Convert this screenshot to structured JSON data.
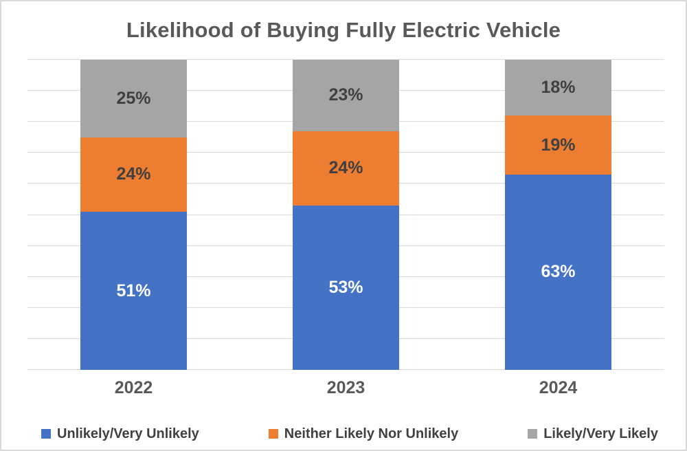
{
  "window": {
    "background_color": "#FFFFFF",
    "border_color": "#D9D9D9"
  },
  "chart_data": {
    "type": "bar",
    "stacked": true,
    "orientation": "vertical",
    "title": "Likelihood of Buying Fully Electric Vehicle",
    "xlabel": "",
    "ylabel": "",
    "categories": [
      "2022",
      "2023",
      "2024"
    ],
    "series": [
      {
        "name": "Unlikely/Very Unlikely",
        "color": "#4472C4",
        "label_color": "#FFFFFF",
        "values": [
          51,
          53,
          63
        ],
        "data_labels": [
          "51%",
          "53%",
          "63%"
        ]
      },
      {
        "name": "Neither Likely Nor Unlikely",
        "color": "#ED7D31",
        "label_color": "#404040",
        "values": [
          24,
          24,
          19
        ],
        "data_labels": [
          "24%",
          "24%",
          "19%"
        ]
      },
      {
        "name": "Likely/Very Likely",
        "color": "#A5A5A5",
        "label_color": "#404040",
        "values": [
          25,
          23,
          18
        ],
        "data_labels": [
          "25%",
          "23%",
          "18%"
        ]
      }
    ],
    "ylim": [
      0,
      100
    ],
    "gridline_step_percent": 10,
    "grid": true,
    "y_axis_ticks_visible": false,
    "legend_position": "bottom",
    "colors": {
      "gridline": "#D9D9D9",
      "axis_text": "#595959",
      "title_text": "#595959",
      "legend_text": "#404040"
    }
  }
}
